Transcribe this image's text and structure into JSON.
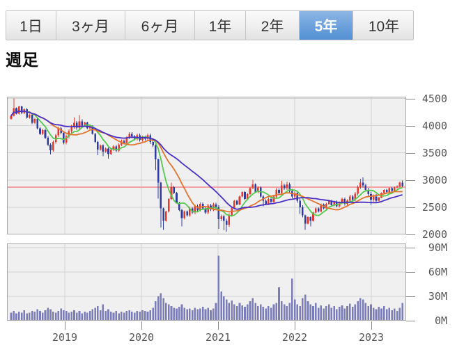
{
  "header": {
    "tabs": [
      {
        "id": "1d",
        "label": "1日",
        "active": false
      },
      {
        "id": "3mo",
        "label": "3ヶ月",
        "active": false
      },
      {
        "id": "6mo",
        "label": "6ヶ月",
        "active": false
      },
      {
        "id": "1y",
        "label": "1年",
        "active": false
      },
      {
        "id": "2y",
        "label": "2年",
        "active": false
      },
      {
        "id": "5y",
        "label": "5年",
        "active": true
      },
      {
        "id": "10y",
        "label": "10年",
        "active": false
      }
    ]
  },
  "title": "週足",
  "chart_data": {
    "type": "candlestick_with_volume",
    "interval_label": "週足",
    "selected_period": "5年",
    "price_axis": {
      "ticks": [
        4500,
        4000,
        3500,
        3000,
        2500,
        2000
      ],
      "min": 2000,
      "max": 4532
    },
    "volume_axis": {
      "ticks": [
        {
          "label": "90M",
          "value": 90
        },
        {
          "label": "60M",
          "value": 60
        },
        {
          "label": "30M",
          "value": 30
        },
        {
          "label": "0M",
          "value": 0
        }
      ],
      "max": 95
    },
    "x_axis": {
      "years": [
        "2019",
        "2020",
        "2021",
        "2022",
        "2023"
      ]
    },
    "reference_price": 2870,
    "first_open": 4120,
    "ma_windows_weeks": [
      13,
      26,
      52
    ],
    "ma_windows_points": [
      7,
      15,
      30
    ],
    "colors": {
      "up": "#e0392f",
      "down": "#2f3c9e",
      "ma13": "#55c94f",
      "ma26": "#e2742e",
      "ma52": "#4b2fc3",
      "volume": "#7a7db8",
      "reference_line": "#f2a2a2",
      "grid": "#d2d2d2",
      "plot_bg": "#f0f0f0",
      "plot_border": "#a8a8a8",
      "axis_text": "#565656",
      "active_tab": "#5390d3"
    },
    "closes": [
      4180,
      4320,
      4220,
      4350,
      4230,
      4300,
      4150,
      4200,
      4050,
      4120,
      3950,
      3850,
      3920,
      3780,
      3650,
      3550,
      3700,
      3820,
      3950,
      3870,
      3690,
      3800,
      3900,
      3980,
      4050,
      3960,
      4080,
      4000,
      4060,
      3950,
      3990,
      3850,
      3700,
      3560,
      3640,
      3520,
      3580,
      3480,
      3560,
      3620,
      3540,
      3650,
      3720,
      3680,
      3780,
      3850,
      3800,
      3760,
      3820,
      3740,
      3780,
      3760,
      3820,
      3700,
      3640,
      3380,
      2950,
      2480,
      2250,
      2420,
      2650,
      2870,
      2760,
      2580,
      2450,
      2300,
      2420,
      2350,
      2480,
      2400,
      2520,
      2450,
      2560,
      2480,
      2400,
      2530,
      2460,
      2550,
      2500,
      2280,
      2330,
      2250,
      2180,
      2350,
      2480,
      2620,
      2550,
      2700,
      2780,
      2650,
      2740,
      2850,
      2920,
      2780,
      2860,
      2700,
      2620,
      2560,
      2650,
      2600,
      2700,
      2820,
      2760,
      2900,
      2850,
      2920,
      2800,
      2700,
      2760,
      2620,
      2500,
      2350,
      2200,
      2320,
      2250,
      2400,
      2480,
      2420,
      2550,
      2480,
      2560,
      2620,
      2540,
      2600,
      2520,
      2580,
      2650,
      2560,
      2620,
      2700,
      2640,
      2750,
      2870,
      2950,
      2900,
      2820,
      2740,
      2640,
      2700,
      2620,
      2680,
      2760,
      2820,
      2780,
      2850,
      2800,
      2860,
      2880,
      2950,
      2890
    ],
    "wick_high_overrides": {
      "1": 4500,
      "24": 4150,
      "26": 4190,
      "61": 2950,
      "92": 3005,
      "103": 2985,
      "105": 2975,
      "133": 3020,
      "134": 3050,
      "149": 2990
    },
    "wick_low_overrides": {
      "15": 3470,
      "33": 3460,
      "35": 3440,
      "37": 3395,
      "55": 3180,
      "56": 2660,
      "57": 2130,
      "58": 2080,
      "65": 2150,
      "79": 2100,
      "81": 2075,
      "82": 2050,
      "96": 2515,
      "110": 2380,
      "112": 2080,
      "114": 2150,
      "137": 2545
    },
    "volumes_millions": [
      10,
      12,
      9,
      11,
      10,
      13,
      9,
      10,
      12,
      11,
      14,
      12,
      10,
      13,
      16,
      14,
      11,
      10,
      12,
      15,
      13,
      12,
      10,
      11,
      13,
      10,
      12,
      9,
      11,
      10,
      12,
      14,
      16,
      18,
      13,
      20,
      12,
      14,
      11,
      10,
      12,
      9,
      11,
      10,
      12,
      13,
      11,
      10,
      12,
      11,
      13,
      12,
      11,
      13,
      16,
      24,
      30,
      34,
      28,
      22,
      20,
      18,
      16,
      15,
      17,
      20,
      16,
      14,
      15,
      13,
      16,
      14,
      15,
      17,
      14,
      16,
      13,
      15,
      22,
      80,
      36,
      30,
      26,
      22,
      25,
      20,
      18,
      22,
      19,
      17,
      20,
      24,
      28,
      22,
      18,
      20,
      17,
      15,
      18,
      16,
      20,
      22,
      41,
      24,
      20,
      18,
      22,
      52,
      26,
      20,
      18,
      28,
      32,
      24,
      20,
      18,
      22,
      16,
      19,
      15,
      18,
      20,
      16,
      18,
      14,
      17,
      19,
      15,
      18,
      21,
      17,
      20,
      24,
      28,
      26,
      22,
      18,
      20,
      16,
      14,
      17,
      15,
      18,
      14,
      16,
      13,
      15,
      12,
      16,
      22
    ]
  }
}
